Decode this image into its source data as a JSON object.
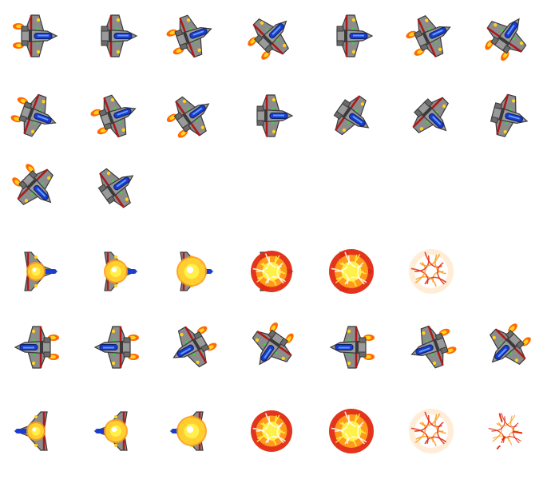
{
  "sheet": {
    "background": "#ffffff",
    "rows": [
      {
        "name": "player-ship-row-1",
        "sprites": [
          {
            "kind": "ship",
            "angle": 0,
            "flames": true
          },
          {
            "kind": "ship",
            "angle": 0,
            "flames": false
          },
          {
            "kind": "ship",
            "angle": -20,
            "flames": true
          },
          {
            "kind": "ship",
            "angle": -45,
            "flames": true
          },
          {
            "kind": "ship",
            "angle": 0,
            "flames": false
          },
          {
            "kind": "ship",
            "angle": -25,
            "flames": true
          },
          {
            "kind": "ship",
            "angle": -55,
            "flames": true
          }
        ]
      },
      {
        "name": "player-ship-row-2",
        "sprites": [
          {
            "kind": "ship",
            "angle": 20,
            "flames": true
          },
          {
            "kind": "ship",
            "angle": -20,
            "flames": true
          },
          {
            "kind": "ship",
            "angle": -35,
            "flames": true
          },
          {
            "kind": "ship",
            "angle": 0,
            "flames": false
          },
          {
            "kind": "ship",
            "angle": 35,
            "flames": false
          },
          {
            "kind": "ship",
            "angle": 45,
            "flames": false
          },
          {
            "kind": "ship",
            "angle": 15,
            "flames": false
          }
        ]
      },
      {
        "name": "player-ship-row-3",
        "sprites": [
          {
            "kind": "ship",
            "angle": 45,
            "flames": true
          },
          {
            "kind": "ship",
            "angle": -35,
            "flames": false
          }
        ]
      },
      {
        "name": "player-explosion-row",
        "sprites": [
          {
            "kind": "explosion",
            "stage": 1,
            "hull": "right"
          },
          {
            "kind": "explosion",
            "stage": 2,
            "hull": "right"
          },
          {
            "kind": "explosion",
            "stage": 3,
            "hull": "right"
          },
          {
            "kind": "explosion",
            "stage": 4,
            "hull": "right"
          },
          {
            "kind": "explosion",
            "stage": 5,
            "hull": "right"
          },
          {
            "kind": "explosion",
            "stage": 6,
            "hull": "none"
          }
        ]
      },
      {
        "name": "enemy-ship-row",
        "sprites": [
          {
            "kind": "ship",
            "angle": 180,
            "flames": true
          },
          {
            "kind": "ship",
            "angle": 180,
            "flames": true
          },
          {
            "kind": "ship",
            "angle": 150,
            "flames": true
          },
          {
            "kind": "ship",
            "angle": 125,
            "flames": true
          },
          {
            "kind": "ship",
            "angle": 180,
            "flames": true
          },
          {
            "kind": "ship",
            "angle": 160,
            "flames": true
          },
          {
            "kind": "ship",
            "angle": 135,
            "flames": true
          }
        ]
      },
      {
        "name": "enemy-explosion-row",
        "sprites": [
          {
            "kind": "explosion",
            "stage": 1,
            "hull": "left"
          },
          {
            "kind": "explosion",
            "stage": 2,
            "hull": "left"
          },
          {
            "kind": "explosion",
            "stage": 3,
            "hull": "left"
          },
          {
            "kind": "explosion",
            "stage": 4,
            "hull": "none"
          },
          {
            "kind": "explosion",
            "stage": 5,
            "hull": "none"
          },
          {
            "kind": "explosion",
            "stage": 6,
            "hull": "none"
          },
          {
            "kind": "explosion",
            "stage": 7,
            "hull": "none"
          }
        ]
      }
    ]
  },
  "palette": {
    "hull_gray": "#8c8c8c",
    "hull_outline": "#3a3a3a",
    "wing_red": "#b01818",
    "canopy_blue": "#1a3ccf",
    "canopy_highlight": "#5fa0ff",
    "light_green": "#3ad63a",
    "yellow": "#ffd21f",
    "flame_orange": "#ff6a00",
    "fire_red": "#e02a10",
    "fire_orange": "#ff9a1a",
    "fire_yellow": "#fff04a"
  }
}
